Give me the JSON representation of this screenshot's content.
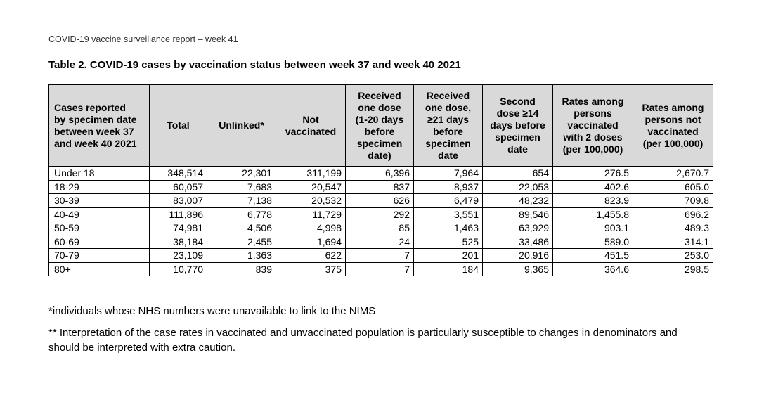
{
  "running_header": "COVID-19 vaccine surveillance report – week 41",
  "table_title": "Table 2. COVID-19 cases by vaccination status between week 37 and week 40 2021",
  "columns": [
    "Cases reported\nby specimen date\nbetween week 37\nand week 40 2021",
    "Total",
    "Unlinked*",
    "Not\nvaccinated",
    "Received\none dose\n(1-20 days\nbefore\nspecimen\ndate)",
    "Received\none dose,\n≥21 days\nbefore\nspecimen\ndate",
    "Second\ndose ≥14\ndays before\nspecimen\ndate",
    "Rates among\npersons\nvaccinated\nwith 2 doses\n(per 100,000)",
    "Rates among\npersons not\nvaccinated\n(per 100,000)"
  ],
  "rows": [
    [
      "Under 18",
      "348,514",
      "22,301",
      "311,199",
      "6,396",
      "7,964",
      "654",
      "276.5",
      "2,670.7"
    ],
    [
      "18-29",
      "60,057",
      "7,683",
      "20,547",
      "837",
      "8,937",
      "22,053",
      "402.6",
      "605.0"
    ],
    [
      "30-39",
      "83,007",
      "7,138",
      "20,532",
      "626",
      "6,479",
      "48,232",
      "823.9",
      "709.8"
    ],
    [
      "40-49",
      "111,896",
      "6,778",
      "11,729",
      "292",
      "3,551",
      "89,546",
      "1,455.8",
      "696.2"
    ],
    [
      "50-59",
      "74,981",
      "4,506",
      "4,998",
      "85",
      "1,463",
      "63,929",
      "903.1",
      "489.3"
    ],
    [
      "60-69",
      "38,184",
      "2,455",
      "1,694",
      "24",
      "525",
      "33,486",
      "589.0",
      "314.1"
    ],
    [
      "70-79",
      "23,109",
      "1,363",
      "622",
      "7",
      "201",
      "20,916",
      "451.5",
      "253.0"
    ],
    [
      "80+",
      "10,770",
      "839",
      "375",
      "7",
      "184",
      "9,365",
      "364.6",
      "298.5"
    ]
  ],
  "footnotes": [
    "*individuals whose NHS numbers were unavailable to link to the NIMS",
    "** Interpretation of the case rates in vaccinated and unvaccinated population is particularly susceptible to changes in denominators and should be interpreted with extra caution."
  ]
}
